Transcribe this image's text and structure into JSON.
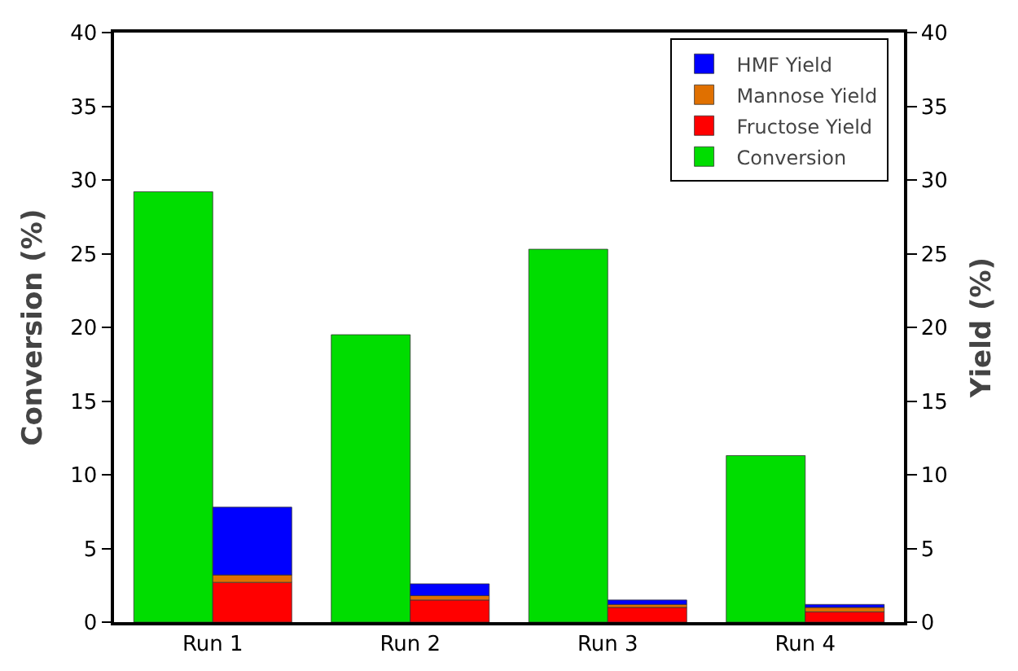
{
  "chart_data": {
    "type": "bar",
    "categories": [
      "Run 1",
      "Run 2",
      "Run 3",
      "Run 4"
    ],
    "ylabel": "Conversion (%)",
    "y2label": "Yield (%)",
    "series": [
      {
        "name": "Conversion",
        "color": "#00dd00",
        "values": [
          29.2,
          19.5,
          25.3,
          11.3
        ],
        "axis": "y"
      },
      {
        "name": "Fructose Yield",
        "color": "#ff0000",
        "values": [
          2.7,
          1.5,
          1.0,
          0.7
        ],
        "axis": "y2"
      },
      {
        "name": "Mannose Yield",
        "color": "#e07000",
        "values": [
          0.5,
          0.3,
          0.2,
          0.3
        ],
        "axis": "y2"
      },
      {
        "name": "HMF Yield",
        "color": "#0000ff",
        "values": [
          4.6,
          0.8,
          0.3,
          0.2
        ],
        "axis": "y2"
      }
    ],
    "stacked": true,
    "ylim": [
      0,
      40
    ],
    "yticks": [
      0,
      5,
      10,
      15,
      20,
      25,
      30,
      35,
      40
    ],
    "y2lim": [
      0,
      40
    ],
    "y2ticks": [
      0,
      5,
      10,
      15,
      20,
      25,
      30,
      35,
      40
    ],
    "grid": false,
    "legend": "top right"
  }
}
